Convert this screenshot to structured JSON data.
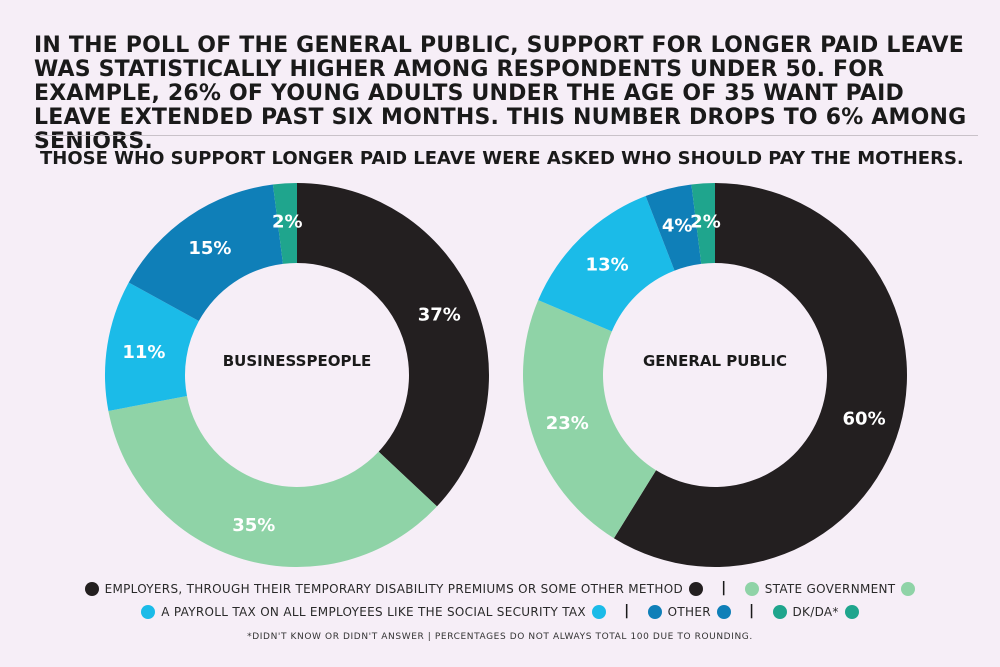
{
  "headline": "In the poll of the general public, support for longer paid leave was statistically higher among respondents under 50. For example, 26% of young adults under the age of 35 want paid leave extended past six months. This number drops to 6% among seniors.",
  "subhead": "Those who support longer paid leave were asked who should pay the mothers.",
  "colors": {
    "employers": "#231f20",
    "state": "#8fd3a7",
    "payroll": "#1bbbe8",
    "other": "#0f7fb8",
    "dkda": "#1fa58d"
  },
  "chart_data": [
    {
      "type": "pie",
      "donut": true,
      "title": "BUSINESSPEOPLE",
      "slices": [
        {
          "key": "employers",
          "name": "Employers, through their temporary disability premiums or some other method",
          "value": 37,
          "label": "37%"
        },
        {
          "key": "state",
          "name": "State government",
          "value": 35,
          "label": "35%"
        },
        {
          "key": "payroll",
          "name": "A payroll tax on all employees like the social security tax",
          "value": 11,
          "label": "11%"
        },
        {
          "key": "other",
          "name": "Other",
          "value": 15,
          "label": "15%"
        },
        {
          "key": "dkda",
          "name": "DK/DA*",
          "value": 2,
          "label": "2%"
        }
      ]
    },
    {
      "type": "pie",
      "donut": true,
      "title": "GENERAL PUBLIC",
      "slices": [
        {
          "key": "employers",
          "name": "Employers, through their temporary disability premiums or some other method",
          "value": 60,
          "label": "60%"
        },
        {
          "key": "state",
          "name": "State government",
          "value": 23,
          "label": "23%"
        },
        {
          "key": "payroll",
          "name": "A payroll tax on all employees like the social security tax",
          "value": 13,
          "label": "13%"
        },
        {
          "key": "other",
          "name": "Other",
          "value": 4,
          "label": "4%"
        },
        {
          "key": "dkda",
          "name": "DK/DA*",
          "value": 2,
          "label": "2%"
        }
      ]
    }
  ],
  "legend": {
    "employers": "Employers, through their temporary disability premiums or some other method",
    "state": "State government",
    "payroll": "A payroll tax on all employees like the social security tax",
    "other": "Other",
    "dkda": "DK/DA*",
    "separator": "|"
  },
  "footnote": "*Didn't know or didn't answer | Percentages do not always total 100 due to rounding."
}
